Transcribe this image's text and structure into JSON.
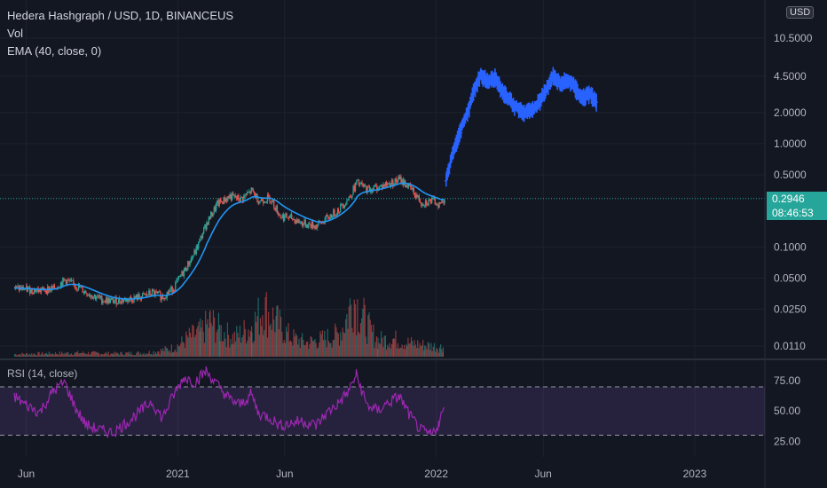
{
  "header": {
    "symbol_line": "Hedera Hashgraph / USD, 1D, BINANCEUS",
    "vol_label": "Vol",
    "ema_label": "EMA (40, close, 0)",
    "rsi_label": "RSI (14, close)"
  },
  "currency_button": "USD",
  "last_price": {
    "value": "0.2946",
    "countdown": "08:46:53"
  },
  "colors": {
    "background": "#131722",
    "up": "#26a69a",
    "down": "#ef5350",
    "projection": "#2962ff",
    "ema": "#2196f3",
    "rsi": "#9c27b0",
    "rsi_band": "#7e57c2"
  },
  "chart_data": [
    {
      "type": "candlestick",
      "title": "Hedera Hashgraph / USD, 1D, BINANCEUS",
      "y_scale": "log",
      "y_ticks": [
        "10.5000",
        "4.5000",
        "2.0000",
        "1.0000",
        "0.5000",
        "0.1000",
        "0.0500",
        "0.0250",
        "0.0110"
      ],
      "y_tick_values": [
        10.5,
        4.5,
        2.0,
        1.0,
        0.5,
        0.1,
        0.05,
        0.025,
        0.011
      ],
      "x_ticks": [
        "Jun",
        "2021",
        "Jun",
        "2022",
        "Jun",
        "2023"
      ],
      "x_tick_values": [
        "2020-06-01",
        "2021-01-01",
        "2021-06-01",
        "2022-01-01",
        "2022-06-01",
        "2023-01-01"
      ],
      "x_range": [
        "2020-04-25",
        "2023-04-10"
      ],
      "last_price": 0.2946,
      "series": [
        {
          "name": "HBAR/USD",
          "points": [
            [
              "2020-05-15",
              0.04
            ],
            [
              "2020-06-01",
              0.039
            ],
            [
              "2020-06-20",
              0.038
            ],
            [
              "2020-07-10",
              0.04
            ],
            [
              "2020-07-25",
              0.048
            ],
            [
              "2020-08-10",
              0.042
            ],
            [
              "2020-08-25",
              0.036
            ],
            [
              "2020-09-15",
              0.031
            ],
            [
              "2020-10-01",
              0.03
            ],
            [
              "2020-10-20",
              0.031
            ],
            [
              "2020-11-10",
              0.033
            ],
            [
              "2020-11-25",
              0.036
            ],
            [
              "2020-12-10",
              0.033
            ],
            [
              "2020-12-25",
              0.04
            ],
            [
              "2021-01-10",
              0.06
            ],
            [
              "2021-01-25",
              0.09
            ],
            [
              "2021-02-10",
              0.17
            ],
            [
              "2021-02-25",
              0.26
            ],
            [
              "2021-03-15",
              0.31
            ],
            [
              "2021-03-30",
              0.29
            ],
            [
              "2021-04-15",
              0.35
            ],
            [
              "2021-04-25",
              0.28
            ],
            [
              "2021-05-10",
              0.3
            ],
            [
              "2021-05-25",
              0.2
            ],
            [
              "2021-06-10",
              0.19
            ],
            [
              "2021-06-25",
              0.17
            ],
            [
              "2021-07-15",
              0.16
            ],
            [
              "2021-07-30",
              0.19
            ],
            [
              "2021-08-15",
              0.23
            ],
            [
              "2021-08-30",
              0.3
            ],
            [
              "2021-09-10",
              0.42
            ],
            [
              "2021-09-25",
              0.36
            ],
            [
              "2021-10-10",
              0.38
            ],
            [
              "2021-10-25",
              0.41
            ],
            [
              "2021-11-10",
              0.45
            ],
            [
              "2021-11-25",
              0.37
            ],
            [
              "2021-12-10",
              0.27
            ],
            [
              "2021-12-25",
              0.28
            ],
            [
              "2022-01-05",
              0.26
            ],
            [
              "2022-01-12",
              0.2946
            ]
          ]
        },
        {
          "name": "projection",
          "points": [
            [
              "2022-01-15",
              0.45
            ],
            [
              "2022-01-25",
              0.85
            ],
            [
              "2022-02-05",
              1.4
            ],
            [
              "2022-02-15",
              2.1
            ],
            [
              "2022-02-25",
              3.6
            ],
            [
              "2022-03-05",
              4.8
            ],
            [
              "2022-03-15",
              4.0
            ],
            [
              "2022-03-25",
              4.4
            ],
            [
              "2022-04-05",
              3.2
            ],
            [
              "2022-04-20",
              2.4
            ],
            [
              "2022-05-05",
              2.0
            ],
            [
              "2022-05-20",
              2.2
            ],
            [
              "2022-06-05",
              3.3
            ],
            [
              "2022-06-15",
              4.6
            ],
            [
              "2022-06-25",
              3.8
            ],
            [
              "2022-07-05",
              4.2
            ],
            [
              "2022-07-15",
              3.6
            ],
            [
              "2022-07-25",
              2.8
            ],
            [
              "2022-08-05",
              3.1
            ],
            [
              "2022-08-15",
              2.6
            ]
          ]
        }
      ]
    },
    {
      "type": "bar",
      "title": "Vol",
      "y_range": [
        0,
        100
      ],
      "points": [
        [
          "2020-05-15",
          4
        ],
        [
          "2020-07-01",
          5
        ],
        [
          "2020-08-15",
          6
        ],
        [
          "2020-10-01",
          5
        ],
        [
          "2020-11-15",
          6
        ],
        [
          "2020-12-25",
          14
        ],
        [
          "2021-01-15",
          30
        ],
        [
          "2021-02-01",
          38
        ],
        [
          "2021-02-15",
          55
        ],
        [
          "2021-03-01",
          42
        ],
        [
          "2021-03-20",
          30
        ],
        [
          "2021-04-15",
          48
        ],
        [
          "2021-05-01",
          78
        ],
        [
          "2021-05-20",
          55
        ],
        [
          "2021-06-10",
          30
        ],
        [
          "2021-07-01",
          22
        ],
        [
          "2021-07-25",
          28
        ],
        [
          "2021-08-15",
          35
        ],
        [
          "2021-09-05",
          96
        ],
        [
          "2021-09-20",
          60
        ],
        [
          "2021-10-10",
          26
        ],
        [
          "2021-11-01",
          28
        ],
        [
          "2021-11-20",
          22
        ],
        [
          "2021-12-15",
          18
        ],
        [
          "2022-01-10",
          15
        ]
      ]
    },
    {
      "type": "line",
      "title": "RSI (14, close)",
      "y_ticks": [
        "75.00",
        "50.00",
        "25.00"
      ],
      "y_tick_values": [
        75,
        50,
        25
      ],
      "upper_band": 70,
      "lower_band": 30,
      "series": [
        {
          "name": "RSI",
          "points": [
            [
              "2020-05-15",
              62
            ],
            [
              "2020-06-01",
              55
            ],
            [
              "2020-06-20",
              49
            ],
            [
              "2020-07-10",
              67
            ],
            [
              "2020-07-25",
              74
            ],
            [
              "2020-08-10",
              52
            ],
            [
              "2020-08-25",
              38
            ],
            [
              "2020-09-15",
              34
            ],
            [
              "2020-10-01",
              32
            ],
            [
              "2020-10-20",
              40
            ],
            [
              "2020-11-10",
              50
            ],
            [
              "2020-11-25",
              58
            ],
            [
              "2020-12-10",
              44
            ],
            [
              "2020-12-25",
              62
            ],
            [
              "2021-01-10",
              78
            ],
            [
              "2021-01-25",
              74
            ],
            [
              "2021-02-10",
              83
            ],
            [
              "2021-02-25",
              72
            ],
            [
              "2021-03-15",
              60
            ],
            [
              "2021-03-30",
              55
            ],
            [
              "2021-04-15",
              64
            ],
            [
              "2021-04-25",
              48
            ],
            [
              "2021-05-10",
              45
            ],
            [
              "2021-05-25",
              38
            ],
            [
              "2021-06-10",
              40
            ],
            [
              "2021-06-25",
              42
            ],
            [
              "2021-07-15",
              38
            ],
            [
              "2021-07-30",
              48
            ],
            [
              "2021-08-15",
              56
            ],
            [
              "2021-08-30",
              66
            ],
            [
              "2021-09-10",
              80
            ],
            [
              "2021-09-25",
              55
            ],
            [
              "2021-10-10",
              50
            ],
            [
              "2021-10-25",
              57
            ],
            [
              "2021-11-10",
              62
            ],
            [
              "2021-11-25",
              46
            ],
            [
              "2021-12-10",
              34
            ],
            [
              "2021-12-25",
              30
            ],
            [
              "2022-01-05",
              40
            ],
            [
              "2022-01-12",
              53
            ]
          ]
        }
      ]
    }
  ]
}
